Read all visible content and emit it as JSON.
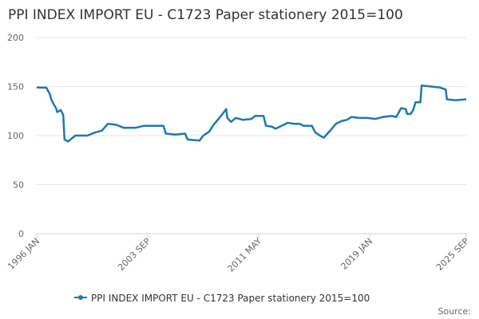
{
  "chart_data": {
    "type": "line",
    "title": "PPI INDEX IMPORT EU - C1723 Paper stationery 2015=100",
    "source": "Source:",
    "x": [
      "1996 JAN",
      "1996 SEP",
      "1996 DEC",
      "1997 JAN",
      "1997 MAR",
      "1997 MAY",
      "1997 JUN",
      "1997 SEP",
      "1997 NOV",
      "1997 DEC",
      "1998 MAR",
      "1998 JUN",
      "1998 SEP",
      "1999 JUL",
      "2000 JAN",
      "2000 JUL",
      "2000 DEC",
      "2001 JUL",
      "2002 JAN",
      "2002 NOV",
      "2003 JUN",
      "2004 APR",
      "2004 OCT",
      "2004 DEC",
      "2005 AUG",
      "2006 APR",
      "2006 JUN",
      "2007 APR",
      "2007 JUL",
      "2007 DEC",
      "2008 MAR",
      "2008 JUL",
      "2008 NOV",
      "2009 FEB",
      "2009 MAR",
      "2009 JUN",
      "2009 OCT",
      "2010 APR",
      "2010 NOV",
      "2011 FEB",
      "2011 SEP",
      "2011 NOV",
      "2012 APR",
      "2012 JUL",
      "2012 DEC",
      "2013 MAY",
      "2013 OCT",
      "2014 MAR",
      "2014 JUN",
      "2015 JAN",
      "2015 APR",
      "2015 SEP",
      "2015 NOV",
      "2016 FEB",
      "2016 MAY",
      "2016 SEP",
      "2017 FEB",
      "2017 JUN",
      "2017 OCT",
      "2018 APR",
      "2018 NOV",
      "2019 JUN",
      "2019 DEC",
      "2020 JUL",
      "2020 NOV",
      "2021 MAR",
      "2021 JUL",
      "2021 AUG",
      "2021 NOV",
      "2022 JAN",
      "2022 MAR",
      "2022 JUL",
      "2022 AUG",
      "2023 APR",
      "2023 NOV",
      "2024 APR",
      "2024 MAY",
      "2024 DEC",
      "2025 SEP"
    ],
    "series": [
      {
        "name": "PPI INDEX IMPORT EU - C1723 Paper stationery 2015=100",
        "color": "#1f77b4",
        "values": [
          149,
          148.8,
          142,
          137,
          132,
          128,
          124,
          126,
          121,
          96,
          94,
          97,
          100,
          100,
          103,
          105,
          112,
          111,
          108,
          108,
          110,
          110,
          110,
          102,
          101,
          102,
          96,
          95,
          100,
          104,
          110,
          116,
          122,
          127,
          118,
          114,
          118,
          116,
          117,
          120,
          120,
          110,
          109,
          107,
          110,
          113,
          112,
          112,
          110,
          110,
          103,
          99,
          98,
          102,
          106,
          112,
          115,
          116,
          119,
          118,
          118,
          117,
          119,
          120,
          119,
          128,
          127,
          122,
          122,
          126,
          134,
          134,
          151,
          150,
          149,
          147,
          137,
          136,
          137
        ]
      }
    ],
    "xticks": [
      "1996 JAN",
      "2003 SEP",
      "2011 MAY",
      "2019 JAN",
      "2025 SEP"
    ],
    "ylim": [
      0,
      200
    ],
    "yticks": [
      0,
      50,
      100,
      150,
      200
    ],
    "grid": true
  }
}
